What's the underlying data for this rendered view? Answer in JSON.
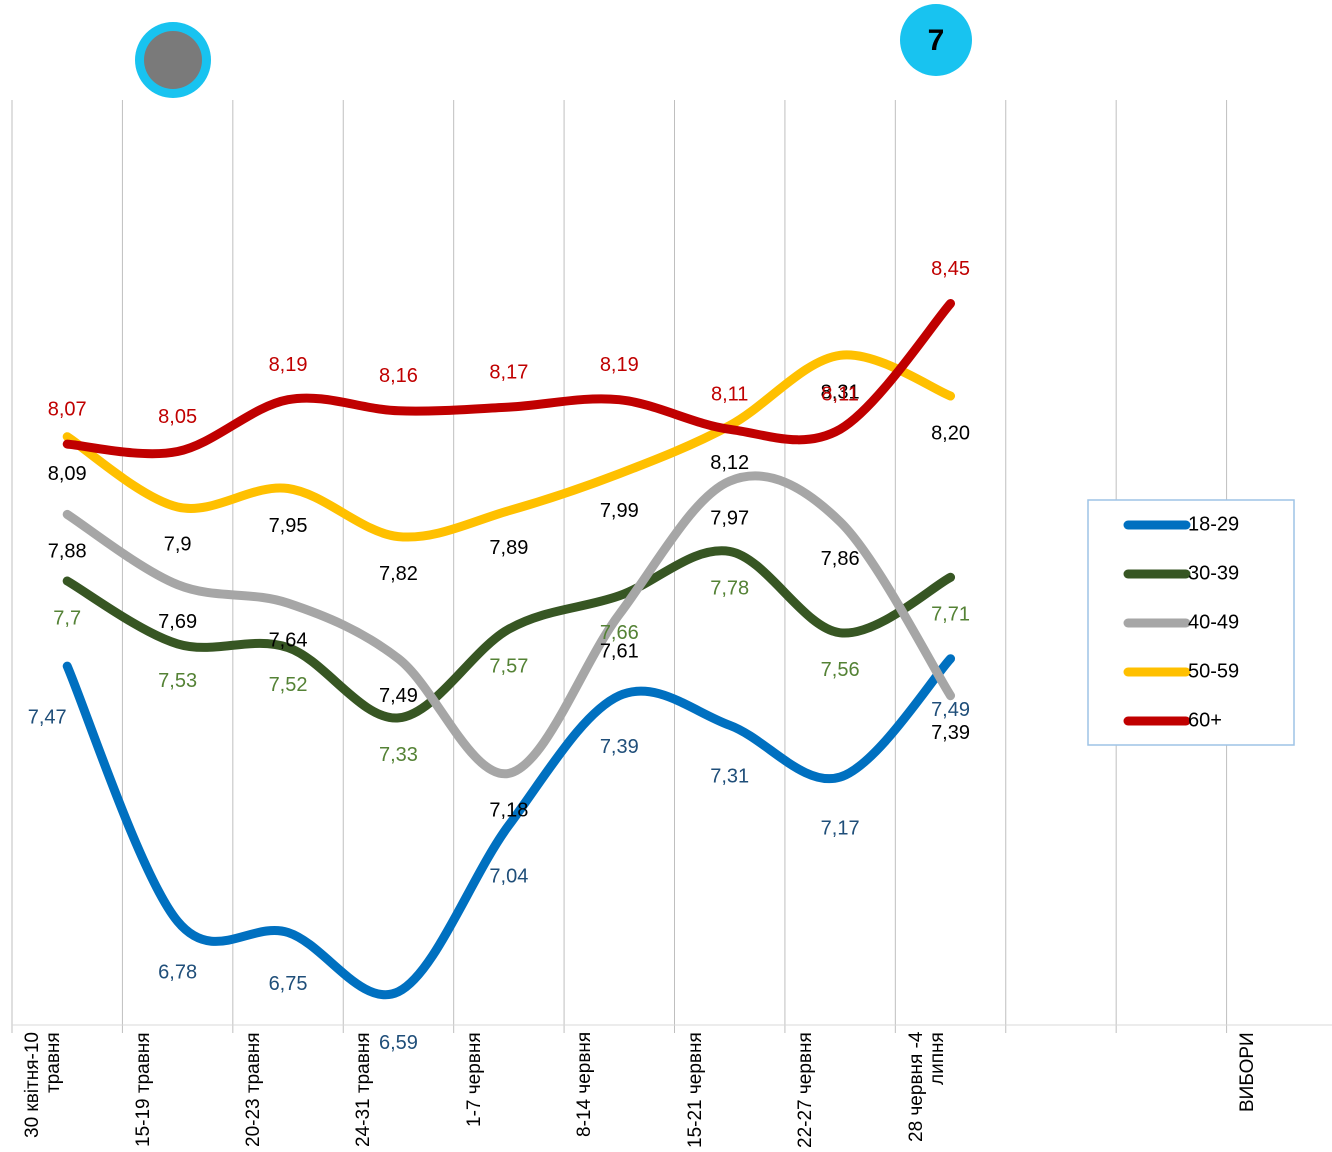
{
  "chart_data": {
    "type": "line",
    "categories": [
      "30 квітня-10 травня",
      "15-19 травня",
      "20-23 травня",
      "24-31 травня",
      "1-7 червня",
      "8-14 червня",
      "15-21 червня",
      "22-27 червня",
      "28 червня -4 липня",
      null,
      null,
      "ВИБОРИ"
    ],
    "series": [
      {
        "name": "18-29",
        "color": "#0070c0",
        "label_color": "#1f4e79",
        "values": [
          7.47,
          6.78,
          6.75,
          6.59,
          7.04,
          7.39,
          7.31,
          7.17,
          7.49,
          null,
          null,
          null
        ],
        "value_labels": [
          "7,47",
          "6,78",
          "6,75",
          "6,59",
          "7,04",
          "7,39",
          "7,31",
          "7,17",
          "7,49",
          null,
          null,
          null
        ]
      },
      {
        "name": "30-39",
        "color": "#375623",
        "label_color": "#548235",
        "values": [
          7.7,
          7.53,
          7.52,
          7.33,
          7.57,
          7.66,
          7.78,
          7.56,
          7.71,
          null,
          null,
          null
        ],
        "value_labels": [
          "7,7",
          "7,53",
          "7,52",
          "7,33",
          "7,57",
          "7,66",
          "7,78",
          "7,56",
          "7,71",
          null,
          null,
          null
        ]
      },
      {
        "name": "40-49",
        "color": "#a6a6a6",
        "label_color": "#000000",
        "values": [
          7.88,
          7.69,
          7.64,
          7.49,
          7.18,
          7.61,
          7.97,
          7.86,
          7.39,
          null,
          null,
          null
        ],
        "value_labels": [
          "7,88",
          "7,69",
          "7,64",
          "7,49",
          "7,18",
          "7,61",
          "7,97",
          "7,86",
          "7,39",
          null,
          null,
          null
        ]
      },
      {
        "name": "50-59",
        "color": "#ffc000",
        "label_color": "#000000",
        "values": [
          8.09,
          7.9,
          7.95,
          7.82,
          7.89,
          7.99,
          8.12,
          8.31,
          8.2,
          null,
          null,
          null
        ],
        "value_labels": [
          "8,09",
          "7,9",
          "7,95",
          "7,82",
          "7,89",
          "7,99",
          "8,12",
          "8,31",
          "8,20",
          null,
          null,
          null
        ]
      },
      {
        "name": "60+",
        "color": "#c00000",
        "label_color": "#c00000",
        "values": [
          8.07,
          8.05,
          8.19,
          8.16,
          8.17,
          8.19,
          8.11,
          8.11,
          8.45,
          null,
          null,
          null
        ],
        "value_labels": [
          "8,07",
          "8,05",
          "8,19",
          "8,16",
          "8,17",
          "8,19",
          "8,11",
          "8,11",
          "8,45",
          null,
          null,
          null
        ]
      }
    ],
    "ylim": [
      6.5,
      9.0
    ],
    "smooth": true,
    "legend": "right",
    "annotations": [
      "7"
    ]
  }
}
